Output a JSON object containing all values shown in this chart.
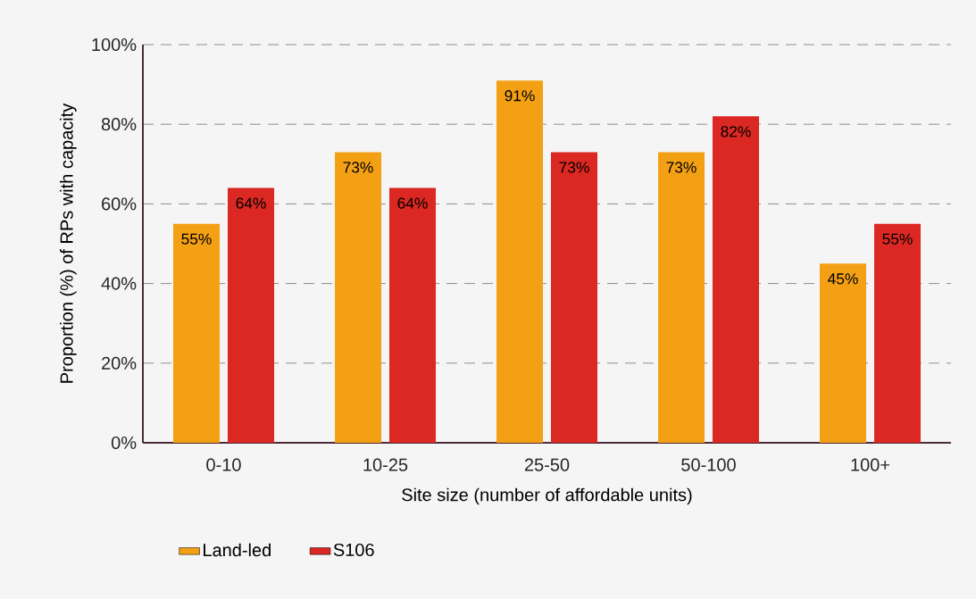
{
  "chart_data": {
    "type": "bar",
    "xlabel": "Site size (number of affordable units)",
    "ylabel": "Proportion (%) of RPs with capacity",
    "categories": [
      "0-10",
      "10-25",
      "25-50",
      "50-100",
      "100+"
    ],
    "series": [
      {
        "name": "Land-led",
        "color": "#f4a015",
        "values": [
          55,
          73,
          91,
          73,
          45
        ],
        "value_labels": [
          "55%",
          "73%",
          "91%",
          "73%",
          "45%"
        ]
      },
      {
        "name": "S106",
        "color": "#dc2822",
        "values": [
          64,
          64,
          73,
          82,
          55
        ],
        "value_labels": [
          "64%",
          "64%",
          "73%",
          "82%",
          "55%"
        ]
      }
    ],
    "ylim": [
      0,
      100
    ],
    "yticks": [
      {
        "value": 0,
        "label": "0%"
      },
      {
        "value": 20,
        "label": "20%"
      },
      {
        "value": 40,
        "label": "40%"
      },
      {
        "value": 60,
        "label": "60%"
      },
      {
        "value": 80,
        "label": "80%"
      },
      {
        "value": 100,
        "label": "100%"
      }
    ],
    "grid": "y",
    "legend": "bottom left"
  }
}
